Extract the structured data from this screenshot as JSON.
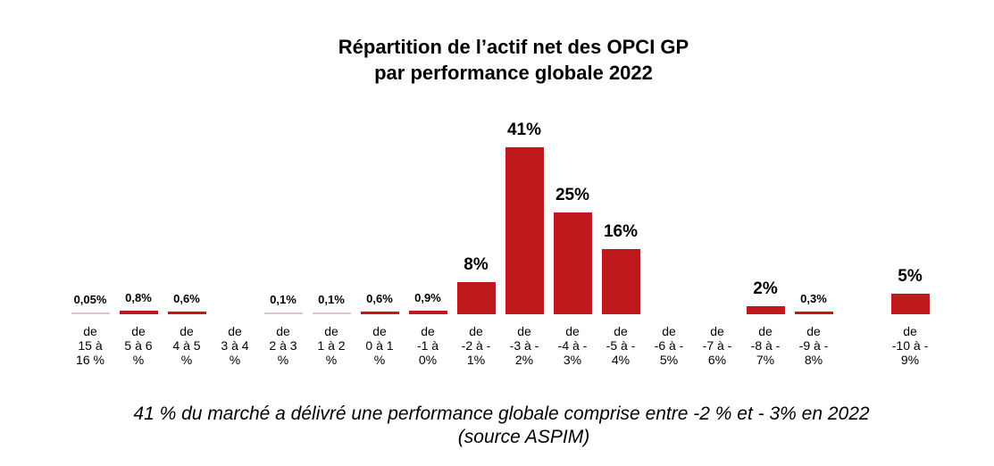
{
  "chart_data": {
    "type": "bar",
    "title": [
      "Répartition de l’actif net des OPCI GP",
      "par performance globale 2022"
    ],
    "xlabel": "",
    "ylabel": "",
    "grid": false,
    "legend": "none",
    "categories": [
      [
        "de",
        "15 à",
        "16 %"
      ],
      [
        "de",
        "5 à 6",
        "%"
      ],
      [
        "de",
        "4 à 5",
        "%"
      ],
      [
        "de",
        "3 à 4",
        "%"
      ],
      [
        "de",
        "2 à 3",
        "%"
      ],
      [
        "de",
        "1 à 2",
        "%"
      ],
      [
        "de",
        "0 à 1",
        "%"
      ],
      [
        "de",
        "-1 à",
        "0%"
      ],
      [
        "de",
        "-2 à -",
        "1%"
      ],
      [
        "de",
        "-3 à -",
        "2%"
      ],
      [
        "de",
        "-4 à -",
        "3%"
      ],
      [
        "de",
        "-5 à -",
        "4%"
      ],
      [
        "de",
        "-6 à -",
        "5%"
      ],
      [
        "de",
        "-7 à -",
        "6%"
      ],
      [
        "de",
        "-8 à -",
        "7%"
      ],
      [
        "de",
        "-9 à -",
        "8%"
      ],
      null,
      [
        "de",
        "-10 à -",
        "9%"
      ]
    ],
    "values": [
      0.05,
      0.8,
      0.6,
      null,
      0.1,
      0.1,
      0.6,
      0.9,
      8,
      41,
      25,
      16,
      null,
      null,
      2,
      0.3,
      null,
      5
    ],
    "data_labels": [
      "0,05%",
      "0,8%",
      "0,6%",
      "",
      "0,1%",
      "0,1%",
      "0,6%",
      "0,9%",
      "8%",
      "41%",
      "25%",
      "16%",
      "",
      "",
      "2%",
      "0,3%",
      "",
      "5%"
    ],
    "ylim": [
      0,
      45
    ],
    "bar_color": "#C0191D",
    "thin_bar_color": "#E8C3C5"
  },
  "caption": {
    "line1": "41 % du marché a délivré une performance globale comprise entre -2 % et - 3%  en 2022",
    "line2": "(source ASPIM)"
  }
}
